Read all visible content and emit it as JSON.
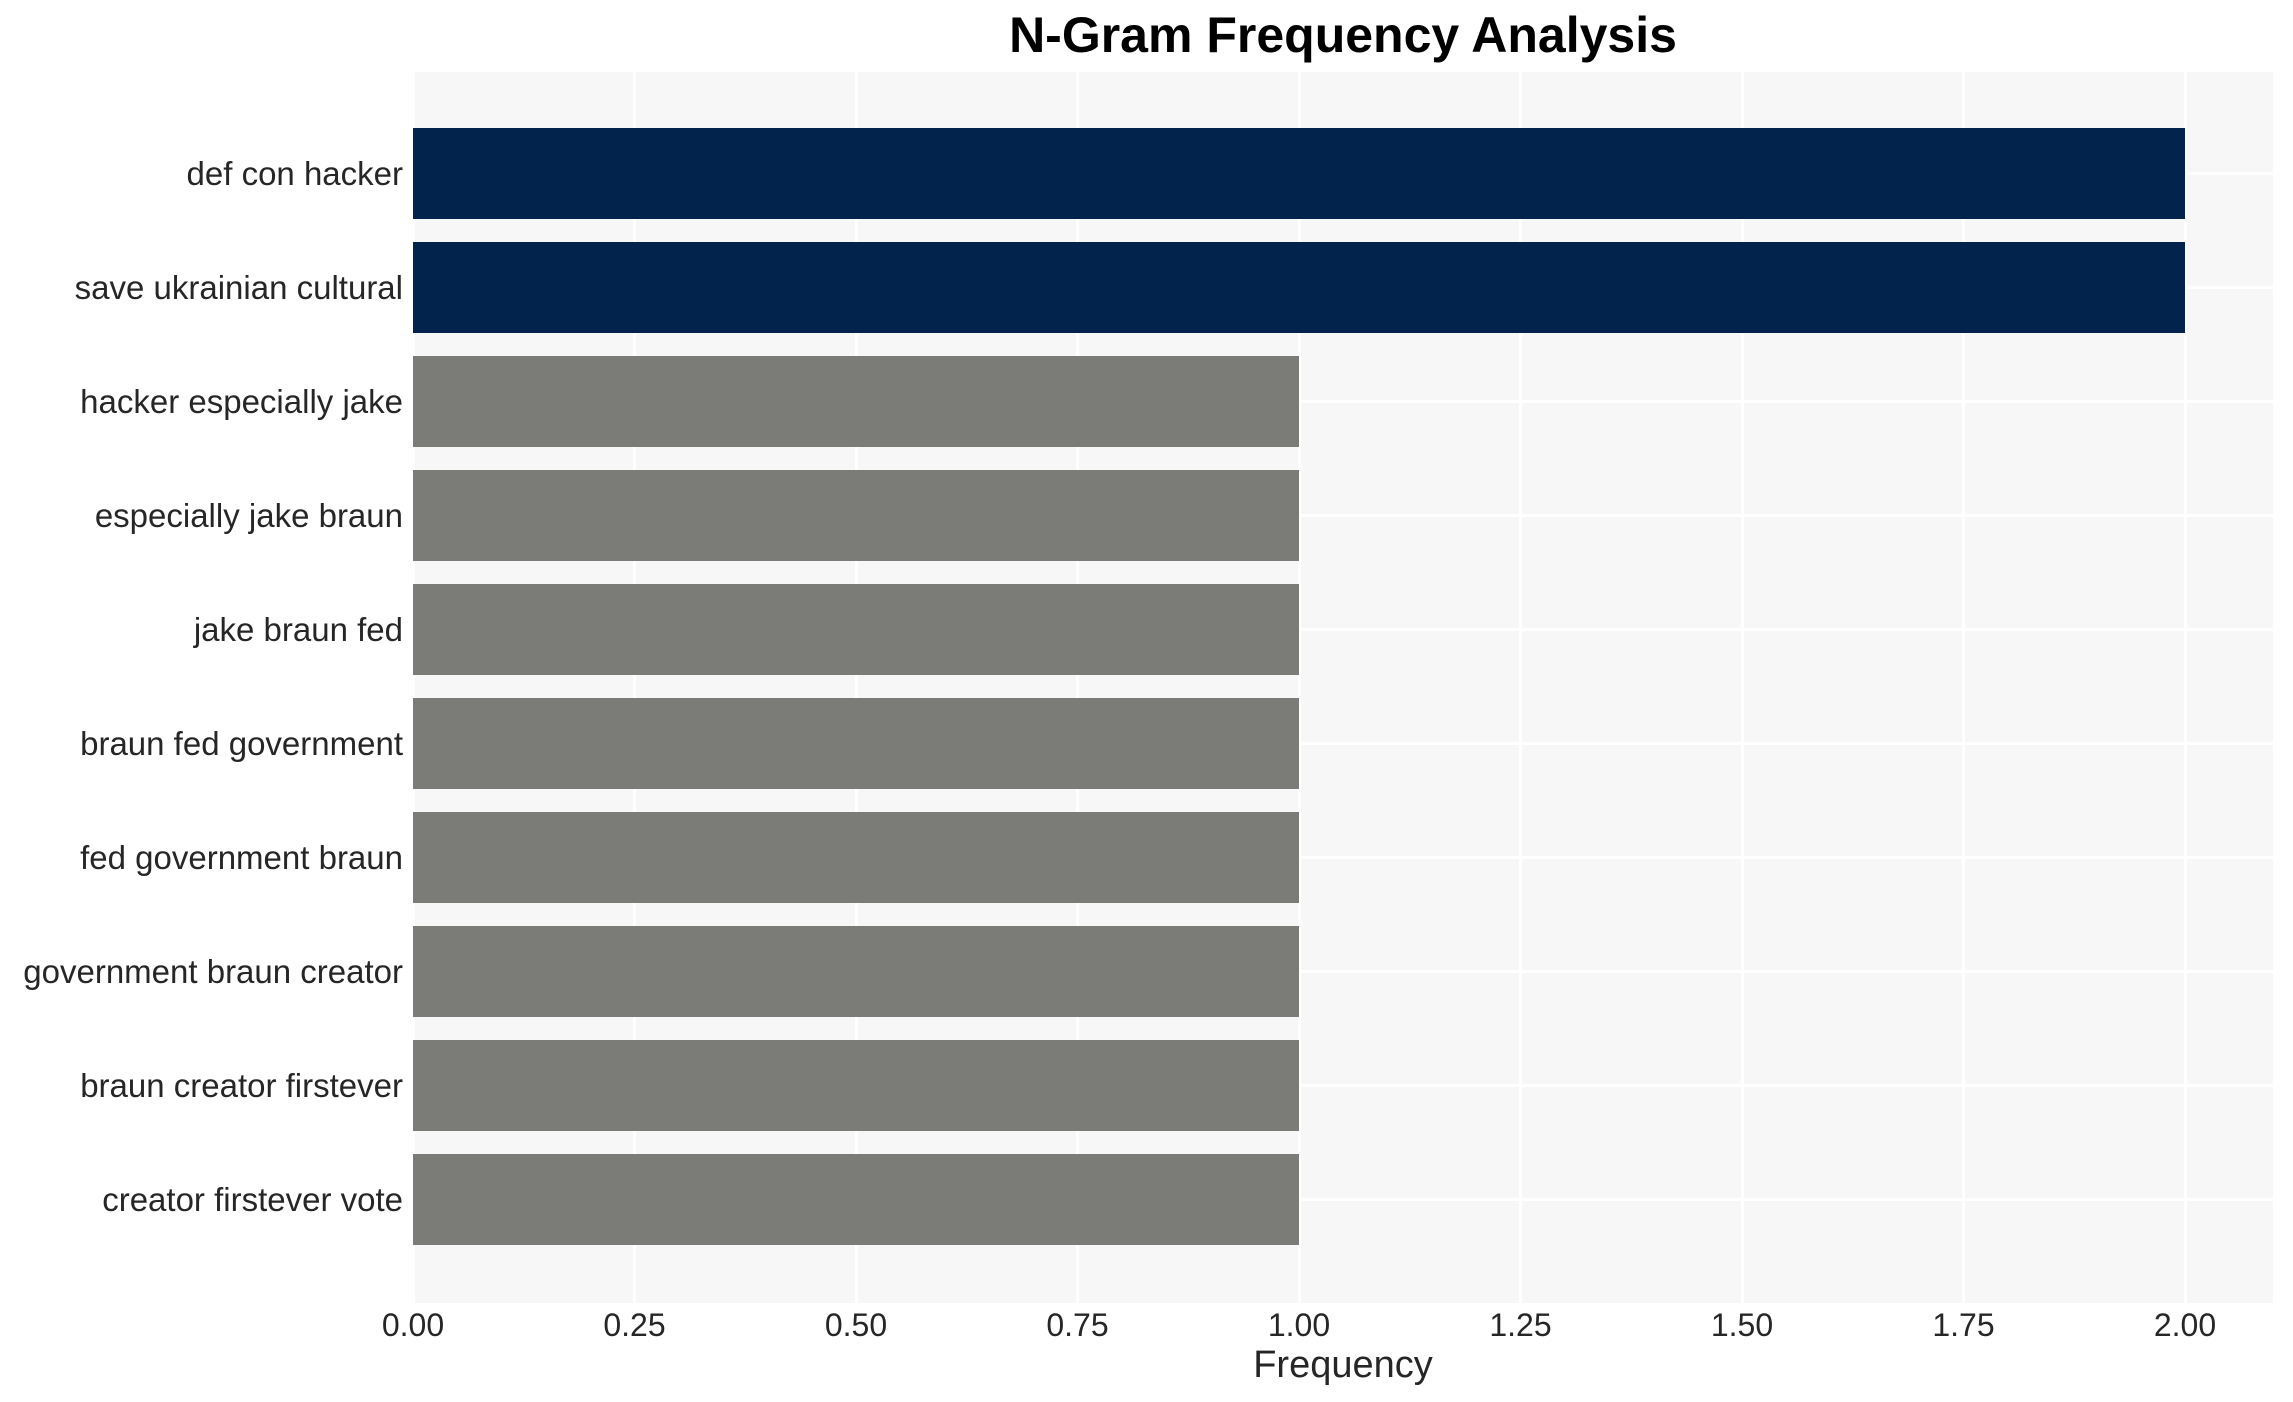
{
  "header": {
    "title": "N-Gram Frequency Analysis"
  },
  "colors": {
    "figure_bg": "#ffffff",
    "plot_bg": "#f7f7f7",
    "grid": "#ffffff",
    "bar_high": "#02234c",
    "bar_low": "#7b7b78",
    "tick_text": "#262626",
    "title_text": "#000000"
  },
  "chart_data": {
    "type": "bar",
    "orientation": "horizontal",
    "title": "N-Gram Frequency Analysis",
    "xlabel": "Frequency",
    "ylabel": "",
    "categories": [
      "def con hacker",
      "save ukrainian cultural",
      "hacker especially jake",
      "especially jake braun",
      "jake braun fed",
      "braun fed government",
      "fed government braun",
      "government braun creator",
      "braun creator firstever",
      "creator firstever vote"
    ],
    "values": [
      2,
      2,
      1,
      1,
      1,
      1,
      1,
      1,
      1,
      1
    ],
    "x_tick_labels": [
      "0.00",
      "0.25",
      "0.50",
      "0.75",
      "1.00",
      "1.25",
      "1.50",
      "1.75",
      "2.00"
    ],
    "xlim": [
      0,
      2.1
    ],
    "grid": "white gridlines on light gray plot background, vertical at each x tick and horizontal at each bar row center",
    "legend": "none"
  }
}
